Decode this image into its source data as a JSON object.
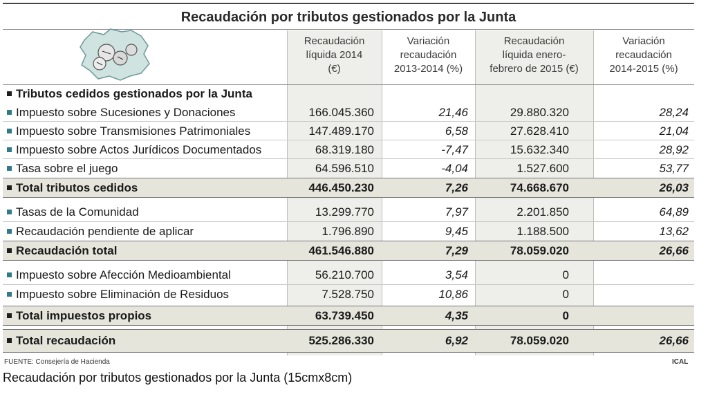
{
  "title": "Recaudación por tributos gestionados por la Junta",
  "columns": [
    "Recaudación líquida 2014 (€)",
    "Variación recaudación 2013-2014 (%)",
    "Recaudación líquida enero-febrero de 2015 (€)",
    "Variación recaudación 2014-2015 (%)"
  ],
  "column_lines": [
    [
      "Recaudación",
      "líquida 2014",
      "(€)"
    ],
    [
      "Variación",
      "recaudación",
      "2013-2014 (%)"
    ],
    [
      "Recaudación",
      "líquida enero-",
      "febrero de 2015 (€)"
    ],
    [
      "Variación",
      "recaudación",
      "2014-2015 (%)"
    ]
  ],
  "section_head": "Tributos cedidos gestionados por la Junta",
  "rows": [
    {
      "label": "Impuesto sobre Sucesiones y Donaciones",
      "v1": "166.045.360",
      "v2": "21,46",
      "v3": "29.880.320",
      "v4": "28,24"
    },
    {
      "label": "Impuesto sobre Transmisiones Patrimoniales",
      "v1": "147.489.170",
      "v2": "6,58",
      "v3": "27.628.410",
      "v4": "21,04"
    },
    {
      "label": "Impuesto sobre Actos Jurídicos Documentados",
      "v1": "68.319.180",
      "v2": "-7,47",
      "v3": "15.632.340",
      "v4": "28,92"
    },
    {
      "label": "Tasa sobre el juego",
      "v1": "64.596.510",
      "v2": "-4,04",
      "v3": "1.527.600",
      "v4": "53,77"
    },
    {
      "label": "Total tributos cedidos",
      "v1": "446.450.230",
      "v2": "7,26",
      "v3": "74.668.670",
      "v4": "26,03"
    },
    {
      "label": "Tasas de la Comunidad",
      "v1": "13.299.770",
      "v2": "7,97",
      "v3": "2.201.850",
      "v4": "64,89"
    },
    {
      "label": "Recaudación pendiente de aplicar",
      "v1": "1.796.890",
      "v2": "9,45",
      "v3": "1.188.500",
      "v4": "13,62"
    },
    {
      "label": "Recaudación total",
      "v1": "461.546.880",
      "v2": "7,29",
      "v3": "78.059.020",
      "v4": "26,66"
    },
    {
      "label": "Impuesto sobre Afección Medioambiental",
      "v1": "56.210.700",
      "v2": "3,54",
      "v3": "0",
      "v4": ""
    },
    {
      "label": "Impuesto sobre Eliminación de Residuos",
      "v1": "7.528.750",
      "v2": "10,86",
      "v3": "0",
      "v4": ""
    },
    {
      "label": "Total impuestos propios",
      "v1": "63.739.450",
      "v2": "4,35",
      "v3": "0",
      "v4": ""
    },
    {
      "label": "Total recaudación",
      "v1": "525.286.330",
      "v2": "6,92",
      "v3": "78.059.020",
      "v4": "26,66"
    }
  ],
  "source": "FUENTE: Consejería de Hacienda",
  "credit": "ICAL",
  "caption": "Recaudación por tributos gestionados por la Junta (15cmx8cm)",
  "colors": {
    "bullet_regular": "#2f7b8a",
    "bullet_total": "#1e1e1e",
    "total_band": "#e5e5dc",
    "shaded_column": "#eeeeea",
    "map_fill": "#cfe3e1"
  }
}
